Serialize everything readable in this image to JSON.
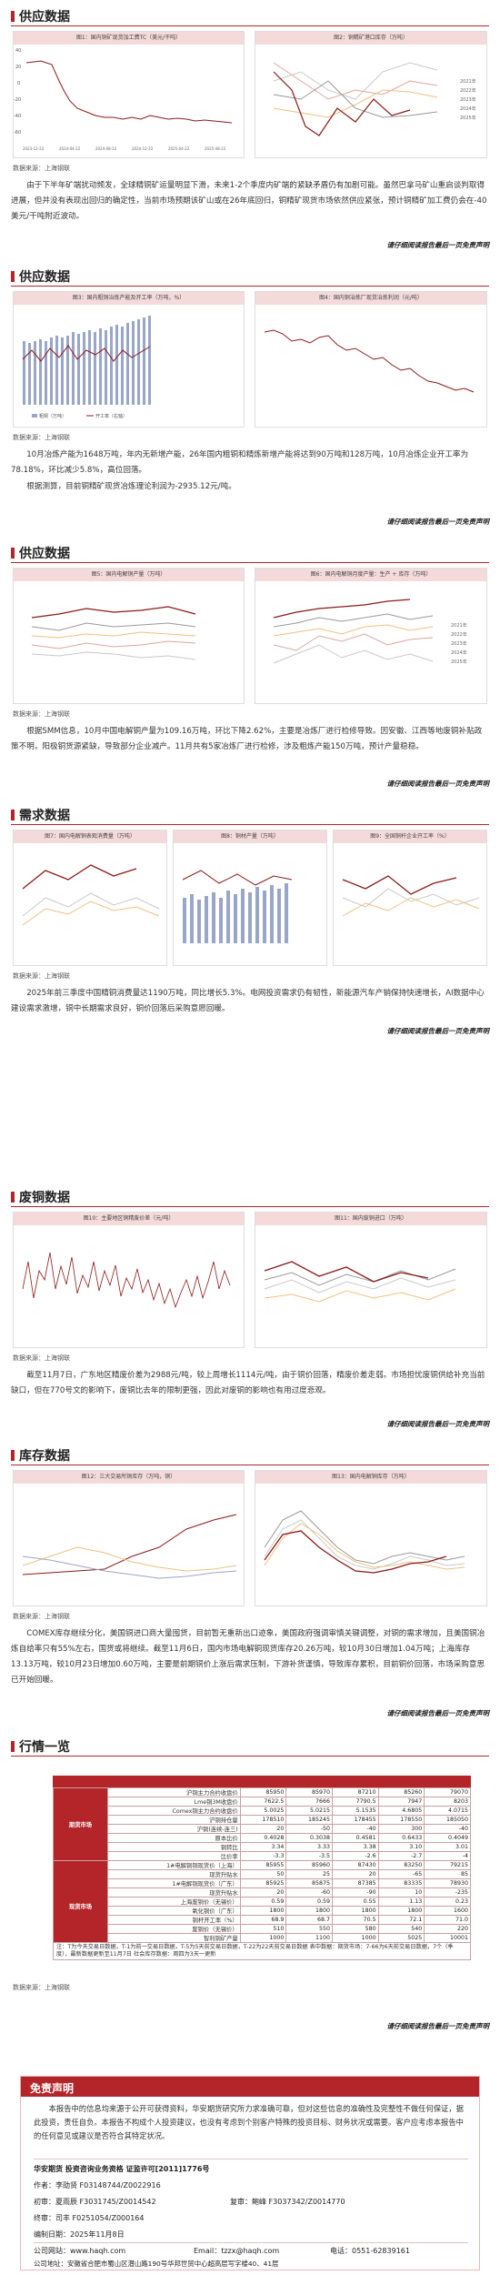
{
  "s1": {
    "title": "供应数据",
    "c1_title": "图1：国内铜矿现货加工费TC（美元/干吨）",
    "c2_title": "图2：铜精矿港口库存（万吨）",
    "source": "数据来源：上海钢联",
    "para": "由于下半年矿端扰动频发，全球精铜矿运量明显下滑，未来1-2个季度内矿端的紧缺矛盾仍有加剧可能。虽然巴拿马矿山重启谈判取得进展，但并没有表现出回归的确定性，当前市场预期该矿山或在26年底回归，铜精矿现货市场依然供应紧张，预计铜精矿加工费仍会在-40美元/干吨附近波动。",
    "disclaimer": "请仔细阅读报告最后一页免责声明",
    "c1_y": [
      "40",
      "20",
      "0",
      "-20",
      "-40",
      "-60"
    ],
    "c1_x": [
      "2023-12-22",
      "2024-03-22",
      "2024-06-22",
      "2024-09-22",
      "2024-12-22",
      "2025-03-22",
      "2025-06-22",
      "2025-09-22"
    ],
    "c2_x": [
      "1月",
      "3月",
      "5月",
      "7月",
      "9月",
      "11月"
    ],
    "c2_y": [
      "100",
      "80",
      "60",
      "40",
      "20",
      "0"
    ],
    "c2_legend": [
      "2021年",
      "2022年",
      "2023年",
      "2024年",
      "2025年"
    ]
  },
  "s2": {
    "title": "供应数据",
    "c3_title": "图3：国内粗铜冶炼产能及开工率（万吨，%）",
    "c4_title": "图4：国内铜冶炼厂现货冶炼利润（元/吨）",
    "legend": [
      "粗铜（万吨）",
      "开工率（右轴）"
    ],
    "source": "数据来源：上海钢联",
    "para1": "10月冶炼产能为1648万吨，年内无新增产能，26年国内粗铜和精炼新增产能将达到90万吨和128万吨，10月冶炼企业开工率为78.18%，环比减少5.8%，高位回落。",
    "para2": "根据测算，目前铜精矿现货冶炼理论利润为-2935.12元/吨。",
    "disclaimer": "请仔细阅读报告最后一页免责声明"
  },
  "s3": {
    "title": "供应数据",
    "c5_title": "图5：国内电解铜产量（万吨）",
    "c6_title": "图6：国内电解铜月度产量：生产 + 库存（万吨）",
    "c5_legend": [
      "2021年",
      "2022年",
      "2023年",
      "2024年",
      "2025年"
    ],
    "c6_legend": [
      "2021年",
      "2022年",
      "2023年",
      "2024年",
      "2025年"
    ],
    "source": "数据来源：上海钢联",
    "para": "根据SMM信息，10月中国电解铜产量为109.16万吨，环比下降2.62%，主要是冶炼厂进行检修导致。因安徽、江西等地废铜补贴政策不明，阳极铜货源紧缺，导致部分企业减产。11月共有5家冶炼厂进行检修，涉及粗炼产能150万吨，预计产量稳稳。",
    "disclaimer": "请仔细阅读报告最后一页免责声明"
  },
  "s4": {
    "title": "需求数据",
    "c7_title": "图7：国内电解铜表观消费量（万吨）",
    "c8_title": "图8：铜材产量（万吨）",
    "c9_title": "图9：全国铜杆企业开工率（%）",
    "source": "数据来源：上海钢联",
    "para": "2025年前三季度中国精铜消费量达1190万吨，同比增长5.3%。电网投资需求仍有韧性，新能源汽车产销保持快速增长，AI数据中心建设需求激增，铜中长期需求良好，铜价回落后采购意愿回暖。",
    "disclaimer": "请仔细阅读报告最后一页免责声明"
  },
  "s5": {
    "title": "废铜数据",
    "c10_title": "图10：主要地区铜精废价差（元/吨）",
    "c11_title": "图11：国内废铜进口（万吨）",
    "source": "数据来源：上海钢联",
    "para": "截至11月7日，广东地区精废价差为2988元/吨，较上周增长1114元/吨，由于铜价回落，精废价差走弱。市场担忧废铜供给补充当前缺口，但在770号文的影响下，废铜比去年的限制更强，因此对废铜的影响也有用过度悲观。",
    "disclaimer": "请仔细阅读报告最后一页免责声明"
  },
  "s6": {
    "title": "库存数据",
    "c12_title": "图12：三大交易所铜库存（万吨，铜）",
    "c13_title": "图13：国内电解铜库存（万吨）",
    "source": "数据来源：上海钢联",
    "para": "COMEX库存继续分化，美国铜进口商大量囤货，目前暂无重新出口迹象，美国政府强调审慎关键调整，对铜的需求增加，且美国铜冶炼自给率只有55%左右，国货或将继续。截至11月6日，国内市场电解铜现货库存20.26万吨，较10月30日增加1.04万吨；上海库存13.13万吨，较10月23日增加0.60万吨，主要是前期铜价上涨后需求压制，下游补货谨慎，导致库存累积，目前铜价回落，市场采购意思已开始回暖。",
    "disclaimer": "请仔细阅读报告最后一页免责声明"
  },
  "s7": {
    "title": "行情一览",
    "rows": [
      {
        "g": "",
        "l": "沪铜主力合约收盘价",
        "v": [
          "85950",
          "85970",
          "87210",
          "85260",
          "79070"
        ]
      },
      {
        "g": "",
        "l": "Lme铜3M收盘价",
        "v": [
          "7622.5",
          "7666",
          "7790.5",
          "7947",
          "8203"
        ]
      },
      {
        "g": "",
        "l": "Comex铜主力合约收盘价",
        "v": [
          "5.0025",
          "5.0215",
          "5.1535",
          "4.6805",
          "4.0715"
        ]
      },
      {
        "g": "",
        "l": "沪铜持仓量",
        "v": [
          "178510",
          "185245",
          "178455",
          "178550",
          "185050"
        ]
      },
      {
        "g": "",
        "l": "沪铜(连续-连三)",
        "v": [
          "20",
          "-50",
          "-40",
          "300",
          "-40"
        ]
      },
      {
        "g": "",
        "l": "原本比价",
        "v": [
          "0.4028",
          "0.3038",
          "0.4581",
          "0.6433",
          "0.4049"
        ]
      },
      {
        "g": "",
        "l": "铜转比",
        "v": [
          "3.34",
          "3.33",
          "3.38",
          "3.10",
          "3.01"
        ]
      },
      {
        "g": "",
        "l": "比价率",
        "v": [
          "-3.3",
          "-3.5",
          "-2.6",
          "-2.7",
          "-4"
        ]
      },
      {
        "g": "",
        "l": "1#电解铜铜现货价（上海）",
        "v": [
          "85955",
          "85960",
          "87430",
          "83250",
          "79215"
        ]
      },
      {
        "g": "",
        "l": "现货升贴水",
        "v": [
          "50",
          "25",
          "20",
          "-65",
          "85"
        ]
      },
      {
        "g": "",
        "l": "1#电解铜现货价（广东）",
        "v": [
          "85925",
          "85875",
          "87385",
          "83335",
          "78930"
        ]
      },
      {
        "g": "",
        "l": "现货升贴水",
        "v": [
          "20",
          "-60",
          "-90",
          "10",
          "-235"
        ]
      },
      {
        "g": "",
        "l": "上海废铜价（无锡价）",
        "v": [
          "0.59",
          "0.59",
          "0.55",
          "1.13",
          "0.23"
        ]
      },
      {
        "g": "",
        "l": "氧化铜价（广东）",
        "v": [
          "1800",
          "1800",
          "1800",
          "1800",
          "1600"
        ]
      },
      {
        "g": "",
        "l": "铜杆开工率（%）",
        "v": [
          "68.9",
          "68.7",
          "70.5",
          "72.1",
          "71.0"
        ]
      },
      {
        "g": "",
        "l": "废铜价（无锡价）",
        "v": [
          "510",
          "550",
          "580",
          "540",
          "220"
        ]
      },
      {
        "g": "",
        "l": "智利铜矿产量",
        "v": [
          "1000",
          "1100",
          "1000",
          "5025",
          "10001"
        ]
      },
      {
        "g": "",
        "l": "LME 1#铜现货均价",
        "v": [
          "10830",
          "10860",
          "10980",
          "10110",
          "12210"
        ]
      }
    ],
    "group1": "期货市场",
    "group2": "现货市场",
    "note": "注：T为今天交易日数据，T-1为前一交易日数据，T-5为5天前交易日数据，T-22为22天前交易日数据 表中数据：期货市场：7-66为6天前交易日数据，7个（季度），最新数据更新至11月7日 社会库存数据：周四为3天一更新",
    "source": "数据来源：上海钢联",
    "disclaimer": "请仔细阅读报告最后一页免责声明"
  },
  "footer": {
    "title": "免责声明",
    "text": "本报告中的信息均来源于公开可获得资料，华安期货研究所力求准确可靠，但对这些信息的准确性及完整性不做任何保证，据此投资，责任自负。本报告不构成个人投资建议，也没有考虑到个别客户特殊的投资目标、财务状况或需要。客户应考虑本报告中的任何意见或建议是否符合其特定状况。",
    "company": "华安期货 投资咨询业务资格 证监许可[2011]1776号",
    "author": "作者：李劭贤 F03148744/Z0022916",
    "review": "初审：夏雨辰 F3031745/Z0014542",
    "review2": "复审：鲍峰 F3037342/Z0014770",
    "final": "终审：司丰 F0251054/Z000164",
    "date": "编制日期：2025年11月8日",
    "site": "公司网站：www.haqh.com",
    "email": "Email：tzzx@haqh.com",
    "phone": "电话：0551-62839161",
    "address": "公司地址：安徽省合肥市蜀山区潜山路190号华邦世贸中心超高层写字楼40、41层"
  }
}
